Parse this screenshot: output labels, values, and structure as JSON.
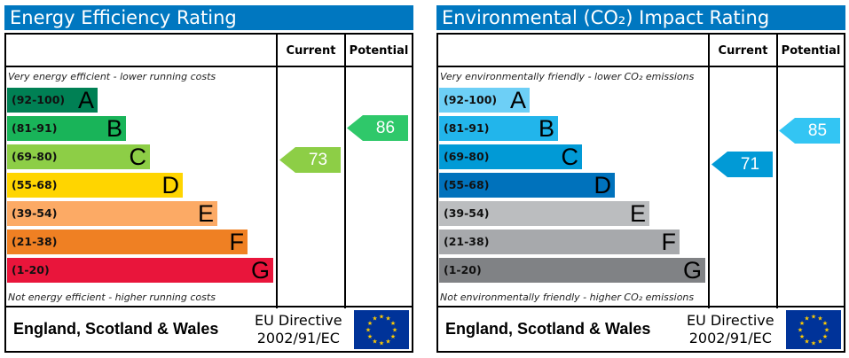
{
  "chart_data": [
    {
      "type": "bar",
      "title": "Energy Efficiency Rating",
      "column_headers": [
        "Current",
        "Potential"
      ],
      "top_note": "Very energy efficient - lower running costs",
      "bottom_note": "Not energy efficient - higher running costs",
      "bands": [
        {
          "range": "(92-100)",
          "letter": "A",
          "color": "#008054"
        },
        {
          "range": "(81-91)",
          "letter": "B",
          "color": "#19b459"
        },
        {
          "range": "(69-80)",
          "letter": "C",
          "color": "#8dce46"
        },
        {
          "range": "(55-68)",
          "letter": "D",
          "color": "#ffd500"
        },
        {
          "range": "(39-54)",
          "letter": "E",
          "color": "#fcaa65"
        },
        {
          "range": "(21-38)",
          "letter": "F",
          "color": "#ef8023"
        },
        {
          "range": "(1-20)",
          "letter": "G",
          "color": "#e9153b"
        }
      ],
      "current": {
        "value": "73",
        "color": "#8dce46"
      },
      "potential": {
        "value": "86",
        "color": "#2fc86a"
      },
      "footer": {
        "region": "England, Scotland & Wales",
        "directive_line1": "EU Directive",
        "directive_line2": "2002/91/EC"
      }
    },
    {
      "type": "bar",
      "title": "Environmental (CO₂) Impact Rating",
      "column_headers": [
        "Current",
        "Potential"
      ],
      "top_note": "Very environmentally friendly - lower CO₂ emissions",
      "bottom_note": "Not environmentally friendly - higher CO₂ emissions",
      "bands": [
        {
          "range": "(92-100)",
          "letter": "A",
          "color": "#6dcff6"
        },
        {
          "range": "(81-91)",
          "letter": "B",
          "color": "#22b5eb"
        },
        {
          "range": "(69-80)",
          "letter": "C",
          "color": "#019ad6"
        },
        {
          "range": "(55-68)",
          "letter": "D",
          "color": "#0072bc"
        },
        {
          "range": "(39-54)",
          "letter": "E",
          "color": "#bbbdbf"
        },
        {
          "range": "(21-38)",
          "letter": "F",
          "color": "#a7a9ac"
        },
        {
          "range": "(1-20)",
          "letter": "G",
          "color": "#808285"
        }
      ],
      "current": {
        "value": "71",
        "color": "#019ad6"
      },
      "potential": {
        "value": "85",
        "color": "#33c5f3"
      },
      "footer": {
        "region": "England, Scotland & Wales",
        "directive_line1": "EU Directive",
        "directive_line2": "2002/91/EC"
      }
    }
  ]
}
